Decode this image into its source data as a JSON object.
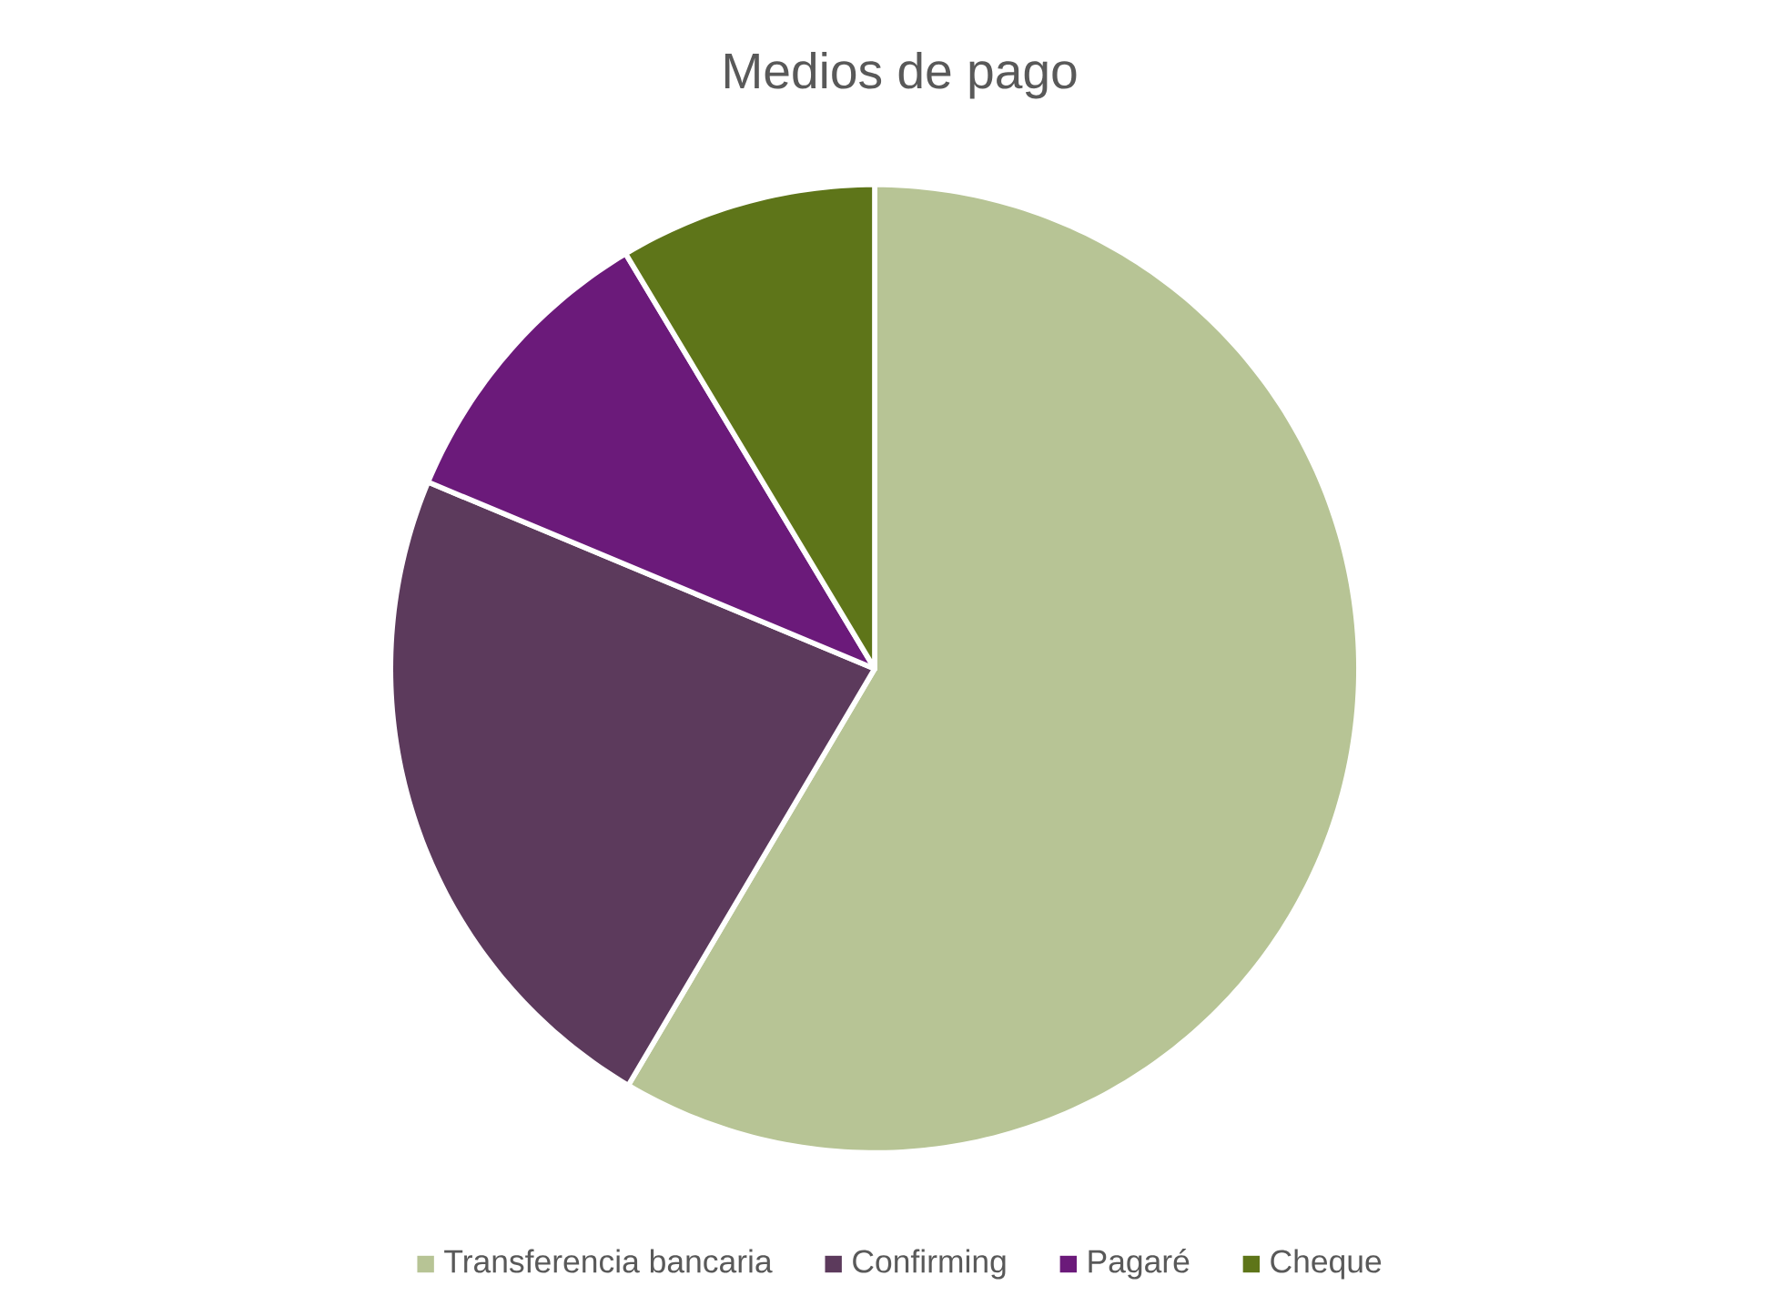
{
  "chart_data": {
    "type": "pie",
    "title": "Medios de pago",
    "categories": [
      "Transferencia bancaria",
      "Confirming",
      "Pagaré",
      "Cheque"
    ],
    "values": [
      58.5,
      22.8,
      10.1,
      8.6
    ],
    "colors": [
      "#b7c495",
      "#5c3a5c",
      "#6b1a7a",
      "#5e7519"
    ],
    "legend": "bottom"
  }
}
